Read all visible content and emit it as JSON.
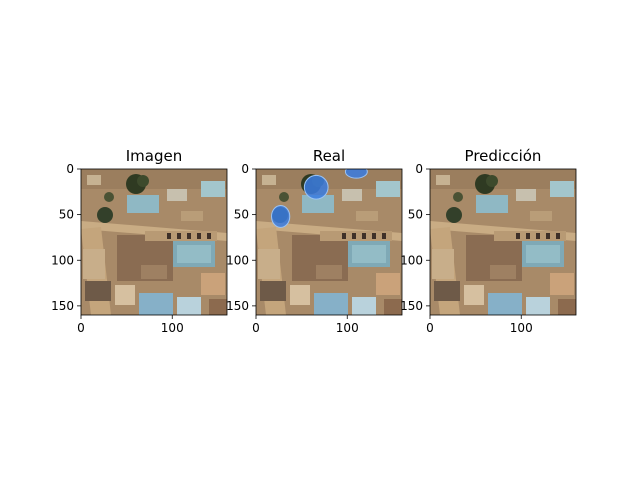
{
  "figure": {
    "panels": [
      {
        "title": "Imagen",
        "x_ticks": [
          {
            "value": 0,
            "label": "0"
          },
          {
            "value": 100,
            "label": "100"
          }
        ],
        "y_ticks": [
          {
            "value": 0,
            "label": "0"
          },
          {
            "value": 50,
            "label": "50"
          },
          {
            "value": 100,
            "label": "100"
          },
          {
            "value": 150,
            "label": "150"
          }
        ],
        "x_range": [
          0,
          160
        ],
        "y_range": [
          0,
          160
        ],
        "overlay": false
      },
      {
        "title": "Real",
        "x_ticks": [
          {
            "value": 0,
            "label": "0"
          },
          {
            "value": 100,
            "label": "100"
          }
        ],
        "y_ticks": [
          {
            "value": 0,
            "label": "0"
          },
          {
            "value": 50,
            "label": "50"
          },
          {
            "value": 100,
            "label": "100"
          },
          {
            "value": 150,
            "label": "150"
          }
        ],
        "x_range": [
          0,
          160
        ],
        "y_range": [
          0,
          160
        ],
        "overlay": true,
        "overlay_color": "#3a7be0"
      },
      {
        "title": "Predicción",
        "x_ticks": [
          {
            "value": 0,
            "label": "0"
          },
          {
            "value": 100,
            "label": "100"
          }
        ],
        "y_ticks": [
          {
            "value": 0,
            "label": "0"
          },
          {
            "value": 50,
            "label": "50"
          },
          {
            "value": 100,
            "label": "100"
          },
          {
            "value": 150,
            "label": "150"
          }
        ],
        "x_range": [
          0,
          160
        ],
        "y_range": [
          0,
          160
        ],
        "overlay": false
      }
    ]
  }
}
